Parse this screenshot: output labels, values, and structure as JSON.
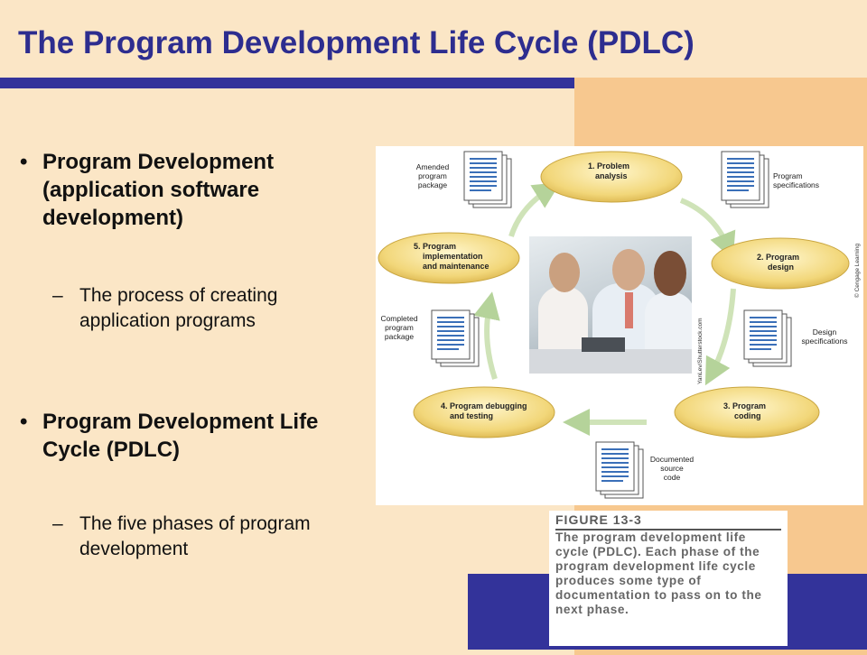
{
  "slide": {
    "title": "The Program Development Life Cycle (PDLC)",
    "bullets": [
      {
        "marker": "•",
        "text": "Program Development (application software development)",
        "sub": {
          "marker": "–",
          "text": "The process of creating application programs"
        }
      },
      {
        "marker": "•",
        "text": "Program Development Life Cycle (PDLC)",
        "sub": {
          "marker": "–",
          "text": "The five phases of program development"
        }
      }
    ],
    "colors": {
      "background": "#fbe6c6",
      "accent_blue": "#33339a",
      "accent_orange": "#f7c88f",
      "title": "#2d2d8f"
    }
  },
  "figure": {
    "phases": [
      {
        "line1": "1. Problem",
        "line2": "analysis"
      },
      {
        "line1": "2. Program",
        "line2": "design"
      },
      {
        "line1": "3. Program",
        "line2": "coding"
      },
      {
        "line1": "4. Program debugging",
        "line2": "and testing"
      },
      {
        "line1": "5. Program",
        "line2": "implementation",
        "line3": "and maintenance"
      }
    ],
    "documents": [
      {
        "line1": "Program",
        "line2": "specifications"
      },
      {
        "line1": "Design",
        "line2": "specifications"
      },
      {
        "line1": "Documented",
        "line2": "source",
        "line3": "code"
      },
      {
        "line1": "Completed",
        "line2": "program",
        "line3": "package"
      },
      {
        "line1": "Amended",
        "line2": "program",
        "line3": "package"
      }
    ],
    "photo_credit": "YanLev/Shutterstock.com",
    "copyright": "© Cengage Learning",
    "caption_heading": "FIGURE 13-3",
    "caption_text": "The program development life cycle (PDLC). Each phase of the program development life cycle produces some type of documentation to pass on to the next phase."
  }
}
